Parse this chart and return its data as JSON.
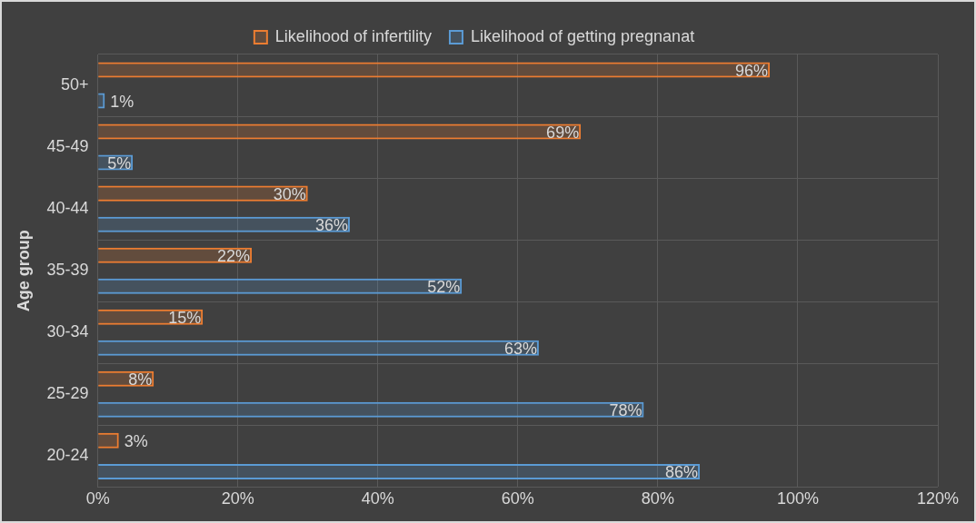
{
  "chart_data": {
    "type": "bar",
    "orientation": "horizontal",
    "ylabel": "Age group",
    "categories": [
      "50+",
      "45-49",
      "40-44",
      "35-39",
      "30-34",
      "25-29",
      "20-24"
    ],
    "series": [
      {
        "name": "Likelihood of infertility",
        "color": "#ed7d31",
        "values": [
          96,
          69,
          30,
          22,
          15,
          8,
          3
        ],
        "value_labels": [
          "96%",
          "69%",
          "30%",
          "22%",
          "15%",
          "8%",
          "3%"
        ]
      },
      {
        "name": "Likelihood of getting pregnanat",
        "color": "#5b9bd5",
        "values": [
          1,
          5,
          36,
          52,
          63,
          78,
          86
        ],
        "value_labels": [
          "1%",
          "5%",
          "36%",
          "52%",
          "63%",
          "78%",
          "86%"
        ]
      }
    ],
    "xlim": [
      0,
      120
    ],
    "xticks": [
      {
        "value": 0,
        "label": "0%"
      },
      {
        "value": 20,
        "label": "20%"
      },
      {
        "value": 40,
        "label": "40%"
      },
      {
        "value": 60,
        "label": "60%"
      },
      {
        "value": 80,
        "label": "80%"
      },
      {
        "value": 100,
        "label": "100%"
      },
      {
        "value": 120,
        "label": "120%"
      }
    ],
    "grid": "x",
    "legend": "top"
  }
}
